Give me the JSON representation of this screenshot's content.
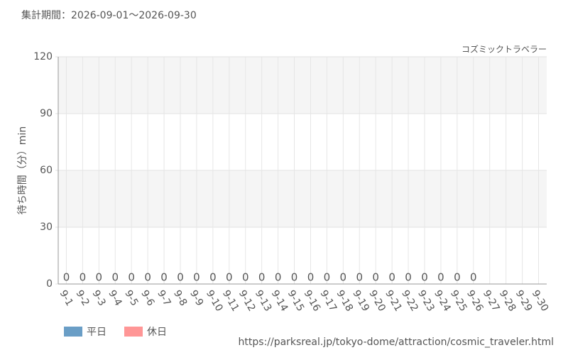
{
  "chart_data": {
    "type": "bar",
    "title": "集計期間：2026-09-01〜2026-09-30",
    "subtitle": "コズミックトラベラー",
    "y_label": "待ち時間（分）min",
    "footer": "https://parksreal.jp/tokyo-dome/attraction/cosmic_traveler.html",
    "categories": [
      "9-1",
      "9-2",
      "9-3",
      "9-4",
      "9-5",
      "9-6",
      "9-7",
      "9-8",
      "9-9",
      "9-10",
      "9-11",
      "9-12",
      "9-13",
      "9-14",
      "9-15",
      "9-16",
      "9-17",
      "9-18",
      "9-19",
      "9-20",
      "9-21",
      "9-22",
      "9-23",
      "9-24",
      "9-25",
      "9-26",
      "9-27",
      "9-28",
      "9-29",
      "9-30"
    ],
    "category_colors": [
      "#555555",
      "#555555",
      "#555555",
      "#555555",
      "#ff8a8a",
      "#ff8a8a",
      "#555555",
      "#555555",
      "#555555",
      "#555555",
      "#555555",
      "#ff8a8a",
      "#ff8a8a",
      "#555555",
      "#555555",
      "#555555",
      "#555555",
      "#555555",
      "#ff8a8a",
      "#ff8a8a",
      "#ff8a8a",
      "#ff8a8a",
      "#ff8a8a",
      "#555555",
      "#555555",
      "#ff8a8a",
      "#ff8a8a",
      "#555555",
      "#555555",
      "#555555"
    ],
    "series": [
      {
        "name": "平日",
        "color": "#6a9ec6",
        "values": [
          0,
          0,
          0,
          0,
          null,
          null,
          0,
          0,
          0,
          0,
          0,
          null,
          null,
          0,
          0,
          0,
          0,
          0,
          null,
          null,
          null,
          null,
          null,
          0,
          0,
          null,
          null,
          null,
          null,
          null
        ]
      },
      {
        "name": "休日",
        "color": "#ff9696",
        "values": [
          null,
          null,
          null,
          null,
          0,
          0,
          null,
          null,
          null,
          null,
          null,
          0,
          0,
          null,
          null,
          null,
          null,
          null,
          0,
          0,
          0,
          0,
          0,
          null,
          null,
          0,
          null,
          null,
          null,
          null
        ]
      }
    ],
    "ylim": [
      0,
      120
    ],
    "yticks": [
      0,
      30,
      60,
      90,
      120
    ],
    "grid": true
  }
}
